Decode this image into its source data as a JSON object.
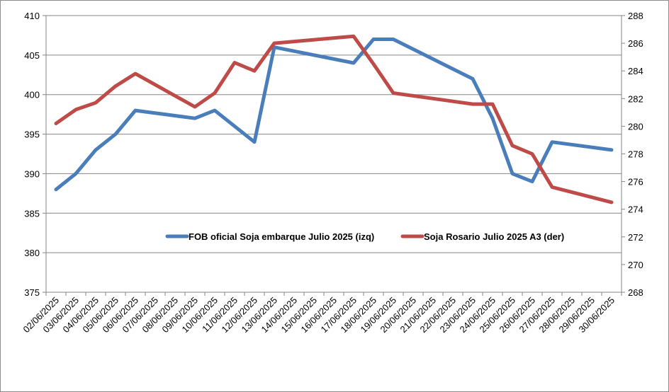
{
  "chart_data": {
    "type": "line",
    "title": "",
    "xlabel": "",
    "ylabel": "",
    "categories": [
      "02/06/2025",
      "03/06/2025",
      "04/06/2025",
      "05/06/2025",
      "06/06/2025",
      "07/06/2025",
      "08/06/2025",
      "09/06/2025",
      "10/06/2025",
      "11/06/2025",
      "12/06/2025",
      "13/06/2025",
      "14/06/2025",
      "15/06/2025",
      "16/06/2025",
      "17/06/2025",
      "18/06/2025",
      "19/06/2025",
      "20/06/2025",
      "21/06/2025",
      "22/06/2025",
      "23/06/2025",
      "24/06/2025",
      "25/06/2025",
      "26/06/2025",
      "27/06/2025",
      "28/06/2025",
      "29/06/2025",
      "30/06/2025"
    ],
    "y_left": {
      "min": 375,
      "max": 410,
      "step": 5,
      "ticks": [
        "375",
        "380",
        "385",
        "390",
        "395",
        "400",
        "405",
        "410"
      ]
    },
    "y_right": {
      "min": 268,
      "max": 288,
      "step": 2,
      "ticks": [
        "268",
        "270",
        "272",
        "274",
        "276",
        "278",
        "280",
        "282",
        "284",
        "286",
        "288"
      ]
    },
    "grid": "horizontal",
    "legend_position": "center",
    "series": [
      {
        "name": "FOB oficial Soja embarque Julio 2025 (izq)",
        "axis": "left",
        "color": "#4a7ebb",
        "values": [
          388,
          390,
          393,
          395,
          398,
          null,
          null,
          397,
          398,
          null,
          394,
          406,
          null,
          null,
          null,
          404,
          407,
          407,
          null,
          null,
          null,
          402,
          397,
          390,
          389,
          394,
          null,
          null,
          393
        ]
      },
      {
        "name": "Soja Rosario Julio 2025 A3 (der)",
        "axis": "right",
        "color": "#be4b48",
        "values": [
          280.2,
          281.2,
          281.7,
          282.9,
          283.8,
          null,
          null,
          281.4,
          282.4,
          284.6,
          284.0,
          286.0,
          null,
          null,
          null,
          286.5,
          284.5,
          282.4,
          null,
          null,
          null,
          281.6,
          281.6,
          278.6,
          278.0,
          275.6,
          null,
          null,
          274.5
        ]
      }
    ]
  }
}
